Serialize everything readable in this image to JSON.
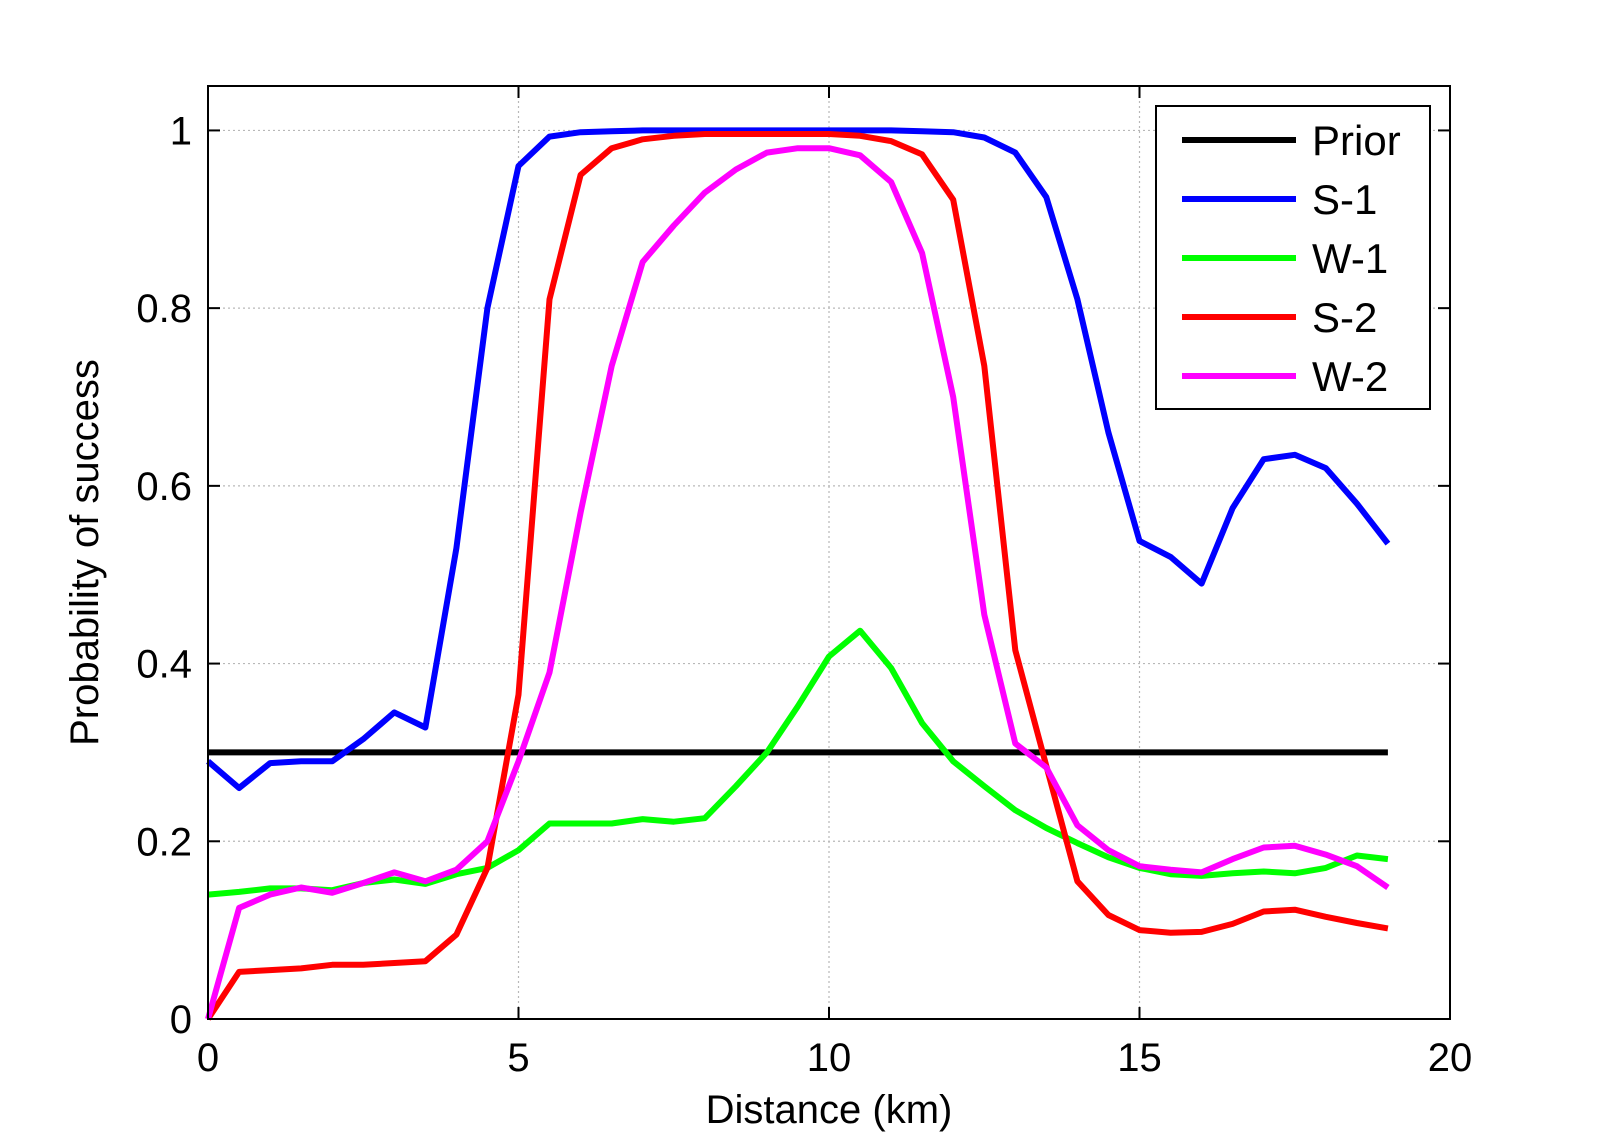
{
  "chart_data": {
    "type": "line",
    "xlabel": "Distance (km)",
    "ylabel": "Probability of success",
    "xlim": [
      0,
      20
    ],
    "ylim": [
      0,
      1.05
    ],
    "xticks": [
      0,
      5,
      10,
      15,
      20
    ],
    "xtick_labels": [
      "0",
      "5",
      "10",
      "15",
      "20"
    ],
    "yticks": [
      0,
      0.2,
      0.4,
      0.6,
      0.8,
      1
    ],
    "ytick_labels": [
      "0",
      "0.2",
      "0.4",
      "0.6",
      "0.8",
      "1"
    ],
    "grid": true,
    "legend_position": "top-right",
    "series": [
      {
        "name": "Prior",
        "color": "#000000",
        "x": [
          0,
          19
        ],
        "y": [
          0.3,
          0.3
        ]
      },
      {
        "name": "S-1",
        "color": "#0000ff",
        "x": [
          0,
          0.5,
          1,
          1.5,
          2,
          2.5,
          3,
          3.5,
          4,
          4.5,
          5,
          5.5,
          6,
          6.5,
          7,
          7.5,
          8,
          8.5,
          9,
          9.5,
          10,
          10.5,
          11,
          11.5,
          12,
          12.5,
          13,
          13.5,
          14,
          14.5,
          15,
          15.5,
          16,
          16.5,
          17,
          17.5,
          18,
          18.5,
          19
        ],
        "y": [
          0.29,
          0.26,
          0.288,
          0.29,
          0.29,
          0.315,
          0.345,
          0.328,
          0.53,
          0.8,
          0.96,
          0.993,
          0.998,
          0.999,
          1.0,
          1.0,
          1.0,
          1.0,
          1.0,
          1.0,
          1.0,
          1.0,
          1.0,
          0.999,
          0.998,
          0.992,
          0.975,
          0.925,
          0.81,
          0.66,
          0.538,
          0.52,
          0.49,
          0.575,
          0.63,
          0.635,
          0.62,
          0.58,
          0.535
        ]
      },
      {
        "name": "W-1",
        "color": "#00ff00",
        "x": [
          0,
          0.5,
          1,
          1.5,
          2,
          2.5,
          3,
          3.5,
          4,
          4.5,
          5,
          5.5,
          6,
          6.5,
          7,
          7.5,
          8,
          8.5,
          9,
          9.5,
          10,
          10.5,
          11,
          11.5,
          12,
          12.5,
          13,
          13.5,
          14,
          14.5,
          15,
          15.5,
          16,
          16.5,
          17,
          17.5,
          18,
          18.5,
          19
        ],
        "y": [
          0.14,
          0.143,
          0.147,
          0.147,
          0.145,
          0.153,
          0.157,
          0.152,
          0.163,
          0.17,
          0.19,
          0.22,
          0.22,
          0.22,
          0.225,
          0.222,
          0.226,
          0.262,
          0.3,
          0.352,
          0.408,
          0.437,
          0.395,
          0.333,
          0.29,
          0.262,
          0.235,
          0.215,
          0.198,
          0.182,
          0.17,
          0.163,
          0.161,
          0.164,
          0.166,
          0.164,
          0.17,
          0.184,
          0.18
        ]
      },
      {
        "name": "S-2",
        "color": "#ff0000",
        "x": [
          0,
          0.5,
          1,
          1.5,
          2,
          2.5,
          3,
          3.5,
          4,
          4.5,
          5,
          5.5,
          6,
          6.5,
          7,
          7.5,
          8,
          8.5,
          9,
          9.5,
          10,
          10.5,
          11,
          11.5,
          12,
          12.5,
          13,
          13.5,
          14,
          14.5,
          15,
          15.5,
          16,
          16.5,
          17,
          17.5,
          18,
          18.5,
          19
        ],
        "y": [
          0.0,
          0.053,
          0.055,
          0.057,
          0.061,
          0.061,
          0.063,
          0.065,
          0.095,
          0.17,
          0.365,
          0.81,
          0.95,
          0.98,
          0.99,
          0.994,
          0.996,
          0.996,
          0.996,
          0.996,
          0.996,
          0.994,
          0.988,
          0.973,
          0.922,
          0.735,
          0.415,
          0.285,
          0.155,
          0.117,
          0.1,
          0.097,
          0.098,
          0.107,
          0.121,
          0.123,
          0.115,
          0.108,
          0.102
        ]
      },
      {
        "name": "W-2",
        "color": "#ff00ff",
        "x": [
          0,
          0.5,
          1,
          1.5,
          2,
          2.5,
          3,
          3.5,
          4,
          4.5,
          5,
          5.5,
          6,
          6.5,
          7,
          7.5,
          8,
          8.5,
          9,
          9.5,
          10,
          10.5,
          11,
          11.5,
          12,
          12.5,
          13,
          13.5,
          14,
          14.5,
          15,
          15.5,
          16,
          16.5,
          17,
          17.5,
          18,
          18.5,
          19
        ],
        "y": [
          0.0,
          0.125,
          0.14,
          0.148,
          0.142,
          0.153,
          0.165,
          0.155,
          0.168,
          0.2,
          0.29,
          0.39,
          0.57,
          0.735,
          0.852,
          0.893,
          0.93,
          0.956,
          0.975,
          0.98,
          0.98,
          0.972,
          0.942,
          0.862,
          0.7,
          0.455,
          0.31,
          0.283,
          0.218,
          0.19,
          0.172,
          0.168,
          0.165,
          0.18,
          0.193,
          0.195,
          0.185,
          0.172,
          0.148
        ]
      }
    ]
  }
}
